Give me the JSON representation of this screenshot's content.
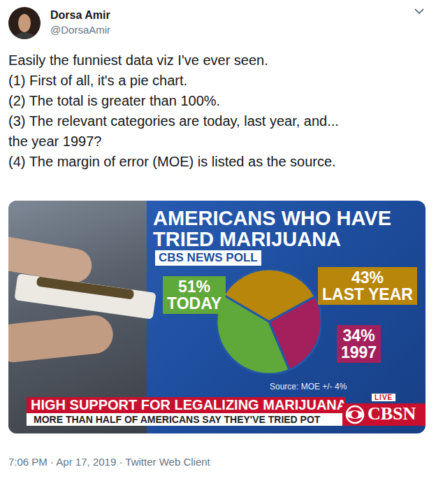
{
  "tweet": {
    "name": "Dorsa Amir",
    "handle": "@DorsaAmir",
    "text": [
      "Easily the funniest data viz I've ever seen.",
      "(1) First of all, it's a pie chart.",
      "(2) The total is greater than 100%.",
      "(3) The relevant categories are today, last year, and...",
      "the year 1997?",
      "(4) The margin of error (MOE) is listed as the source."
    ],
    "timestamp": "7:06 PM · Apr 17, 2019 · Twitter Web Client"
  },
  "chart_data": {
    "type": "pie",
    "title": "AMERICANS WHO HAVE TRIED MARIJUANA",
    "subtitle": "CBS NEWS POLL",
    "categories": [
      "TODAY",
      "LAST YEAR",
      "1997"
    ],
    "values": [
      51,
      43,
      34
    ],
    "value_labels": [
      "51%",
      "43%",
      "34%"
    ],
    "colors": [
      "#5fa83a",
      "#b8860b",
      "#a3205c"
    ],
    "source": "Source: MOE +/- 4%"
  },
  "broadcast": {
    "headline": "HIGH SUPPORT FOR LEGALIZING MARIJUANA",
    "subheadline": "MORE THAN HALF OF AMERICANS SAY THEY'VE TRIED POT",
    "live": "LIVE",
    "network": "CBSN"
  }
}
